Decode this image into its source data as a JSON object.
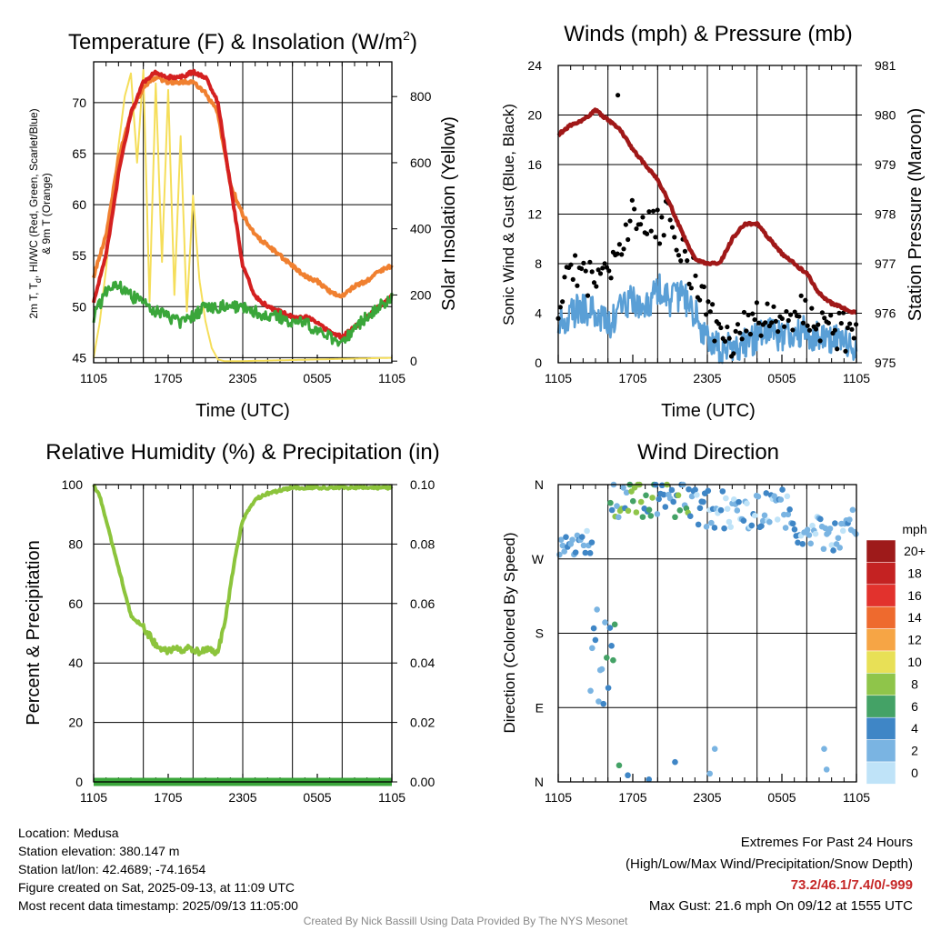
{
  "colors": {
    "red": "#d42020",
    "green": "#3aa63a",
    "orange": "#f08030",
    "yellow": "#f5de5a",
    "blue": "#5a9fd6",
    "black": "#000000",
    "maroon": "#a01818",
    "rh": "#8cc43c",
    "precip": "#3aa63a"
  },
  "xticks": [
    "1105",
    "1705",
    "2305",
    "0505",
    "1105"
  ],
  "chart_data": [
    {
      "type": "line",
      "title": "Temperature (F) & Insolation (W/m²)",
      "title_main": "Temperature (F) & Insolation (W/m",
      "title_sup": "2",
      "title_end": ")",
      "xlabel": "Time (UTC)",
      "ylabel_line1": "2m T, T",
      "ylabel_sub": "d",
      "ylabel_line1_end": ", HI/WC (Red, Green, Scarlet/Blue)",
      "ylabel_line2": "& 9m T (Orange)",
      "y2label": "Solar Insolation (Yellow)",
      "ylim": [
        44.5,
        74
      ],
      "yticks": [
        45,
        50,
        55,
        60,
        65,
        70
      ],
      "y2lim": [
        -5,
        905
      ],
      "y2ticks": [
        0,
        200,
        400,
        600,
        800
      ],
      "x_hours": [
        0,
        1,
        2,
        3,
        4,
        5,
        6,
        7,
        8,
        9,
        10,
        11,
        12,
        13,
        14,
        15,
        16,
        17,
        18,
        19,
        20,
        21,
        22,
        23,
        24
      ],
      "series": [
        {
          "color": "orange",
          "values": [
            53,
            57,
            64.5,
            69,
            71.5,
            72.5,
            72,
            72,
            72,
            71,
            69,
            62,
            59,
            57,
            56,
            55,
            54,
            53,
            52.5,
            51.5,
            51,
            52,
            52.5,
            53.5,
            54
          ]
        },
        {
          "color": "red",
          "values": [
            50.5,
            55,
            63,
            69,
            72,
            73,
            72.5,
            72.5,
            73,
            72.5,
            70,
            62,
            54,
            51,
            50,
            49.5,
            49,
            49,
            48.5,
            47.5,
            47,
            48,
            49,
            50,
            51
          ]
        },
        {
          "color": "green",
          "values": [
            49,
            51.5,
            52,
            51,
            50.5,
            49.5,
            49,
            48.5,
            49,
            50,
            50,
            50,
            50,
            49.5,
            49,
            49,
            48.5,
            48.5,
            47.5,
            47,
            46.5,
            48,
            49,
            50,
            51
          ]
        }
      ],
      "insolation": {
        "color": "yellow",
        "x_hours": [
          0,
          0.5,
          1,
          1.5,
          2,
          2.5,
          3,
          3.5,
          4,
          4.5,
          5,
          5.5,
          6,
          6.5,
          7,
          7.5,
          8,
          8.5,
          9,
          9.5,
          10,
          10.5,
          11,
          12,
          24
        ],
        "values": [
          10,
          120,
          280,
          480,
          650,
          800,
          870,
          600,
          880,
          180,
          840,
          300,
          820,
          200,
          680,
          150,
          500,
          250,
          120,
          40,
          5,
          0,
          0,
          0,
          10
        ]
      }
    },
    {
      "type": "scatter",
      "title": "Winds (mph) & Pressure (mb)",
      "xlabel": "Time (UTC)",
      "ylabel": "Sonic Wind & Gust (Blue, Black)",
      "y2label": "Station Pressure (Maroon)",
      "ylim": [
        0,
        24
      ],
      "yticks": [
        0,
        4,
        8,
        12,
        16,
        20,
        24
      ],
      "y2lim": [
        975,
        981
      ],
      "y2ticks": [
        975,
        976,
        977,
        978,
        979,
        980,
        981
      ],
      "x_hours": [
        0,
        1,
        2,
        3,
        4,
        5,
        6,
        7,
        8,
        9,
        10,
        11,
        12,
        13,
        14,
        15,
        16,
        17,
        18,
        19,
        20,
        21,
        22,
        23,
        24
      ],
      "wind": [
        3,
        4,
        4.5,
        4,
        3,
        4.5,
        5,
        4.5,
        6,
        5,
        5.5,
        4,
        2,
        1,
        1.2,
        1.5,
        2,
        2.5,
        2,
        2.5,
        2.5,
        2,
        2,
        1.5,
        1.5
      ],
      "gust": [
        5,
        7,
        7.5,
        6,
        7,
        10,
        12,
        11,
        11,
        12,
        9,
        7,
        5,
        1.5,
        2,
        2.5,
        3.5,
        4,
        3,
        4,
        4,
        3,
        2.5,
        2.5,
        2
      ],
      "gust_max": {
        "hour": 4.8,
        "value": 21.6
      },
      "pressure": [
        979.6,
        979.8,
        979.9,
        980.1,
        979.9,
        979.7,
        979.3,
        979,
        978.7,
        978.2,
        977.6,
        977.1,
        977,
        977,
        977.5,
        977.8,
        977.8,
        977.5,
        977.2,
        977,
        976.8,
        976.4,
        976.2,
        976.1,
        976
      ]
    },
    {
      "type": "line",
      "title": "Relative Humidity (%) & Precipitation (in)",
      "ylabel": "Percent & Precipitation",
      "ylim": [
        0,
        100
      ],
      "yticks": [
        0,
        20,
        40,
        60,
        80,
        100
      ],
      "y2lim": [
        0,
        0.1
      ],
      "y2ticks": [
        "0.00",
        "0.02",
        "0.04",
        "0.06",
        "0.08",
        "0.10"
      ],
      "x_hours": [
        0,
        0.5,
        1,
        1.5,
        2,
        2.5,
        3,
        3.5,
        4,
        4.5,
        5,
        5.5,
        6,
        6.5,
        7,
        7.5,
        8,
        8.5,
        9,
        9.5,
        10,
        10.5,
        11,
        11.5,
        12,
        13,
        14,
        15,
        16,
        18,
        20,
        22,
        24
      ],
      "rh": [
        100,
        96,
        88,
        80,
        72,
        64,
        56,
        54,
        52,
        49,
        46,
        45,
        44,
        45,
        44,
        45,
        44,
        44,
        45,
        44,
        44,
        52,
        66,
        78,
        88,
        95,
        97,
        98,
        99,
        99,
        99,
        99,
        99
      ],
      "precip": 0
    },
    {
      "type": "scatter",
      "title": "Wind Direction",
      "ylabel": "Direction (Colored By Speed)",
      "yticks": [
        "N",
        "E",
        "S",
        "W",
        "N"
      ],
      "legend_unit": "mph",
      "legend_labels": [
        "20+",
        "18",
        "16",
        "14",
        "12",
        "10",
        "8",
        "6",
        "4",
        "2",
        "0"
      ],
      "legend_colors": [
        "#9e1a1a",
        "#c42222",
        "#e2322d",
        "#ee6a2e",
        "#f6a545",
        "#e8e056",
        "#8fc54a",
        "#44a266",
        "#3f86c6",
        "#7ab4e2",
        "#bfe3f8"
      ]
    }
  ],
  "info": {
    "location": "Location: Medusa",
    "elevation": "Station elevation: 380.147 m",
    "latlon": "Station lat/lon: 42.4689; -74.1654",
    "created": "Figure created on Sat, 2025-09-13, at 11:09 UTC",
    "recent": "Most recent data timestamp: 2025/09/13 11:05:00"
  },
  "extremes": {
    "title": "Extremes For Past 24 Hours",
    "subtitle": "(High/Low/Max Wind/Precipitation/Snow Depth)",
    "values": "73.2/46.1/7.4/0/-999",
    "max_gust": "Max Gust: 21.6 mph On 09/12 at 1555 UTC"
  },
  "credit": "Created By Nick Bassill Using Data Provided By The NYS Mesonet"
}
